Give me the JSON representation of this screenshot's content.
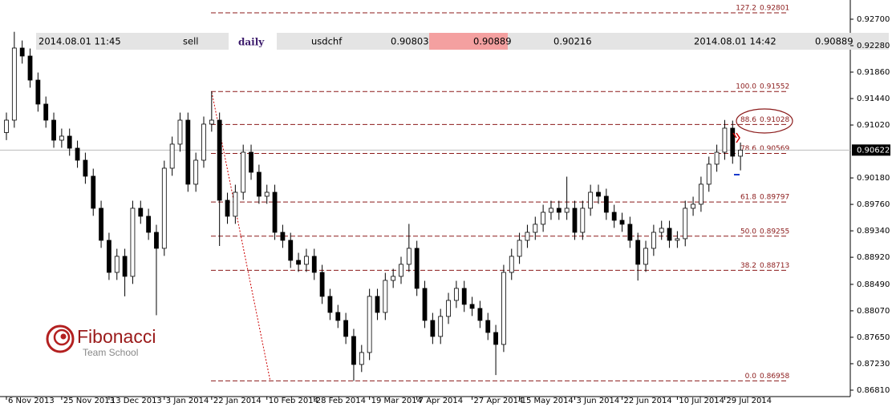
{
  "info_bar": [
    "2014.08.01 11:45",
    "sell",
    "daily",
    "usdchf",
    "0.90803",
    "0.90889",
    "0.90216",
    "2014.08.01 14:42",
    "0.90889"
  ],
  "logo": {
    "name": "Fibonacci",
    "tagline": "Team School"
  },
  "chart_data": {
    "type": "candlestick",
    "categories": [
      "6 Nov 2013",
      null,
      null,
      null,
      null,
      null,
      null,
      "25 Nov 2013",
      null,
      null,
      null,
      null,
      null,
      "13 Dec 2013",
      null,
      null,
      null,
      null,
      null,
      null,
      "3 Jan 2014",
      null,
      null,
      null,
      null,
      null,
      "22 Jan 2014",
      null,
      null,
      null,
      null,
      null,
      null,
      "10 Feb 2014",
      null,
      null,
      null,
      null,
      null,
      "28 Feb 2014",
      null,
      null,
      null,
      null,
      null,
      null,
      "19 Mar 2014",
      null,
      null,
      null,
      null,
      null,
      "7 Apr 2014",
      null,
      null,
      null,
      null,
      null,
      null,
      "27 Apr 2014",
      null,
      null,
      null,
      null,
      null,
      "15 May 2014",
      null,
      null,
      null,
      null,
      null,
      null,
      "3 Jun 2014",
      null,
      null,
      null,
      null,
      null,
      "22 Jun 2014",
      null,
      null,
      null,
      null,
      null,
      null,
      "10 Jul 2014",
      null,
      null,
      null,
      null,
      null,
      "29 Jul 2014",
      null,
      null
    ],
    "open": [
      0.909,
      0.91097,
      0.92242,
      0.92115,
      0.91733,
      0.91352,
      0.91097,
      0.90779,
      0.90843,
      0.90652,
      0.90461,
      0.90207,
      0.89698,
      0.89189,
      0.8868,
      0.88935,
      0.88617,
      0.89698,
      0.89571,
      0.89316,
      0.89062,
      0.90334,
      0.90716,
      0.91097,
      0.9008,
      0.90461,
      0.91034,
      0.91097,
      0.89825,
      0.89571,
      0.89952,
      0.90588,
      0.9027,
      0.89889,
      0.89952,
      0.89316,
      0.89189,
      0.88871,
      0.88808,
      0.88935,
      0.8868,
      0.88299,
      0.88044,
      0.87917,
      0.87663,
      0.87218,
      0.87408,
      0.88299,
      0.88044,
      0.88553,
      0.88617,
      0.88808,
      0.89062,
      0.88426,
      0.87917,
      0.87663,
      0.87981,
      0.88235,
      0.88426,
      0.88172,
      0.88108,
      0.87917,
      0.87726,
      0.87536,
      0.8868,
      0.88935,
      0.89189,
      0.89316,
      0.89444,
      0.89634,
      0.89698,
      0.89634,
      0.89698,
      0.89316,
      0.89698,
      0.89952,
      0.89889,
      0.89634,
      0.89507,
      0.89444,
      0.89189,
      0.88808,
      0.89062,
      0.89316,
      0.8938,
      0.89189,
      0.89215,
      0.89698,
      0.89762,
      0.9008,
      0.90398,
      0.90588,
      0.9097,
      0.90525
    ],
    "high": [
      0.91217,
      0.925,
      0.92362,
      0.92235,
      0.91853,
      0.91472,
      0.91217,
      0.90963,
      0.90963,
      0.90772,
      0.90581,
      0.90327,
      0.89818,
      0.89309,
      0.89055,
      0.89055,
      0.89818,
      0.89818,
      0.89691,
      0.89436,
      0.90454,
      0.90836,
      0.91217,
      0.91217,
      0.90581,
      0.91154,
      0.91552,
      0.91217,
      0.89945,
      0.90072,
      0.90708,
      0.90708,
      0.9039,
      0.90072,
      0.90072,
      0.89436,
      0.89309,
      0.88991,
      0.89055,
      0.89055,
      0.888,
      0.88419,
      0.88164,
      0.88037,
      0.87783,
      0.87528,
      0.88419,
      0.88419,
      0.88673,
      0.88737,
      0.88928,
      0.8945,
      0.89182,
      0.88546,
      0.88037,
      0.88101,
      0.88355,
      0.88546,
      0.88546,
      0.88292,
      0.88228,
      0.88037,
      0.87846,
      0.888,
      0.89055,
      0.89309,
      0.89436,
      0.89564,
      0.89754,
      0.89818,
      0.89818,
      0.902,
      0.89818,
      0.89818,
      0.90072,
      0.90072,
      0.90009,
      0.89754,
      0.89627,
      0.89564,
      0.89309,
      0.89182,
      0.89436,
      0.895,
      0.895,
      0.89335,
      0.89818,
      0.89882,
      0.902,
      0.90518,
      0.90708,
      0.911,
      0.9109,
      0.90742
    ],
    "low": [
      0.9078,
      0.90977,
      0.91995,
      0.91613,
      0.91232,
      0.90977,
      0.90659,
      0.90659,
      0.90532,
      0.90341,
      0.90087,
      0.89578,
      0.89069,
      0.8856,
      0.8856,
      0.883,
      0.88497,
      0.89451,
      0.89196,
      0.88,
      0.88942,
      0.90214,
      0.90596,
      0.8996,
      0.8996,
      0.90341,
      0.90914,
      0.891,
      0.89451,
      0.89451,
      0.89832,
      0.9015,
      0.89769,
      0.89769,
      0.89196,
      0.89069,
      0.88751,
      0.88688,
      0.88688,
      0.8856,
      0.88179,
      0.87924,
      0.87797,
      0.87543,
      0.86958,
      0.87098,
      0.87288,
      0.87924,
      0.87924,
      0.88433,
      0.88497,
      0.88688,
      0.88306,
      0.87797,
      0.87543,
      0.87543,
      0.87861,
      0.88115,
      0.88052,
      0.87988,
      0.87797,
      0.87606,
      0.8705,
      0.87416,
      0.8856,
      0.88815,
      0.89069,
      0.89196,
      0.89324,
      0.89514,
      0.89514,
      0.89514,
      0.89196,
      0.89196,
      0.89578,
      0.89769,
      0.89514,
      0.89387,
      0.89324,
      0.89069,
      0.8855,
      0.88688,
      0.88942,
      0.89196,
      0.89069,
      0.89069,
      0.89095,
      0.89578,
      0.89642,
      0.8996,
      0.90278,
      0.90468,
      0.90405,
      0.903
    ],
    "close": [
      0.91097,
      0.92242,
      0.92115,
      0.91733,
      0.91352,
      0.91097,
      0.90779,
      0.90843,
      0.90652,
      0.90461,
      0.90207,
      0.89698,
      0.89189,
      0.8868,
      0.88935,
      0.88617,
      0.89698,
      0.89571,
      0.89316,
      0.89062,
      0.90334,
      0.90716,
      0.91097,
      0.9008,
      0.90461,
      0.91034,
      0.91097,
      0.89825,
      0.89571,
      0.89952,
      0.90588,
      0.9027,
      0.89889,
      0.89952,
      0.89316,
      0.89189,
      0.88871,
      0.88808,
      0.88935,
      0.8868,
      0.88299,
      0.88044,
      0.87917,
      0.87663,
      0.87218,
      0.87408,
      0.88299,
      0.88044,
      0.88553,
      0.88617,
      0.88808,
      0.89062,
      0.88426,
      0.87917,
      0.87663,
      0.87981,
      0.88235,
      0.88426,
      0.88172,
      0.88108,
      0.87917,
      0.87726,
      0.87536,
      0.8868,
      0.88935,
      0.89189,
      0.89316,
      0.89444,
      0.89634,
      0.89698,
      0.89634,
      0.89698,
      0.89316,
      0.89698,
      0.89952,
      0.89889,
      0.89634,
      0.89507,
      0.89444,
      0.89189,
      0.88808,
      0.89062,
      0.89316,
      0.8938,
      0.89189,
      0.89215,
      0.89698,
      0.89762,
      0.9008,
      0.90398,
      0.90588,
      0.9097,
      0.90525,
      0.90622
    ],
    "up_color": "#ffffff",
    "down_color": "#000000",
    "ylim": [
      0.86708,
      0.93005
    ],
    "yticks": [
      {
        "value": 0.927,
        "label": "0.92700"
      },
      {
        "value": 0.9228,
        "label": "0.92280"
      },
      {
        "value": 0.9186,
        "label": "0.91860"
      },
      {
        "value": 0.9144,
        "label": "0.91440"
      },
      {
        "value": 0.9102,
        "label": "0.91020"
      },
      {
        "value": 0.9018,
        "label": "0.90180"
      },
      {
        "value": 0.8976,
        "label": "0.89760"
      },
      {
        "value": 0.8934,
        "label": "0.89340"
      },
      {
        "value": 0.8892,
        "label": "0.88920"
      },
      {
        "value": 0.8849,
        "label": "0.88490"
      },
      {
        "value": 0.8807,
        "label": "0.88070"
      },
      {
        "value": 0.8765,
        "label": "0.87650"
      },
      {
        "value": 0.8723,
        "label": "0.87230"
      },
      {
        "value": 0.8681,
        "label": "0.86810"
      }
    ],
    "current_price": {
      "value": 0.90622,
      "label": "0.90622"
    },
    "fib_levels": [
      {
        "level": "127.2",
        "price": {
          "value": 0.92801,
          "label": "0.92801"
        }
      },
      {
        "level": "100.0",
        "price": {
          "value": 0.91552,
          "label": "0.91552"
        }
      },
      {
        "level": "88.6",
        "price": {
          "value": 0.91028,
          "label": "0.91028"
        }
      },
      {
        "level": "78.6",
        "price": {
          "value": 0.90569,
          "label": "0.90569"
        }
      },
      {
        "level": "61.8",
        "price": {
          "value": 0.89797,
          "label": "0.89797"
        }
      },
      {
        "level": "50.0",
        "price": {
          "value": 0.89255,
          "label": "0.89255"
        }
      },
      {
        "level": "38.2",
        "price": {
          "value": 0.88713,
          "label": "0.88713"
        }
      },
      {
        "level": "0.0",
        "price": {
          "value": 0.86958,
          "label": "0.86958"
        }
      }
    ],
    "fib_color": "#8b1a1a"
  }
}
